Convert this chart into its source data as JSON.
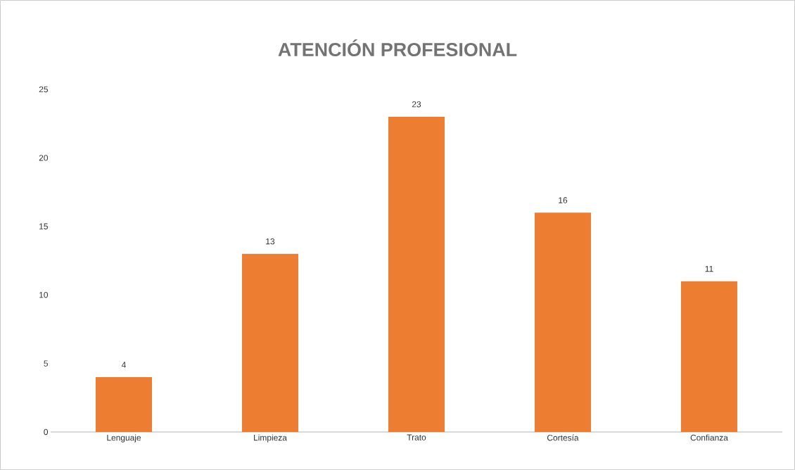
{
  "chart_data": {
    "type": "bar",
    "title": "ATENCIÓN PROFESIONAL",
    "categories": [
      "Lenguaje",
      "Limpieza",
      "Trato",
      "Cortesía",
      "Confianza"
    ],
    "values": [
      4,
      13,
      23,
      16,
      11
    ],
    "color": "#ed7d31",
    "ylim": [
      0,
      25
    ],
    "yticks": [
      0,
      5,
      10,
      15,
      20,
      25
    ],
    "data_labels": true
  }
}
